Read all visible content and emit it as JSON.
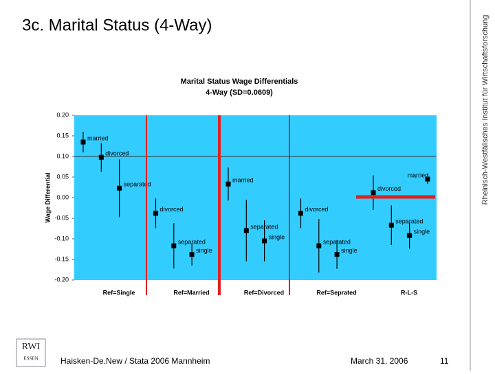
{
  "slide": {
    "title": "3c. Marital Status (4-Way)",
    "side_text": "Rheinisch-Westfälisches Institut für Wirtschaftsforschung",
    "logo": {
      "name": "RWI",
      "city": "ESSEN"
    },
    "footer": {
      "author": "Haisken-De.New / Stata 2006 Mannheim",
      "date": "March 31, 2006",
      "page": "11"
    }
  },
  "chart_data": {
    "type": "errorbar",
    "title": "Marital Status Wage Differentials",
    "subtitle": "4-Way (SD=0.0609)",
    "ylabel": "Wage Differential",
    "ylim": [
      -0.2,
      0.2
    ],
    "yticks": [
      {
        "value": 0.2,
        "label": "0.20"
      },
      {
        "value": 0.15,
        "label": "0.15"
      },
      {
        "value": 0.1,
        "label": "0.10"
      },
      {
        "value": 0.05,
        "label": "0.05"
      },
      {
        "value": 0,
        "label": "0.00"
      },
      {
        "value": -0.05,
        "label": "-0.05"
      },
      {
        "value": -0.1,
        "label": "-0.10"
      },
      {
        "value": -0.15,
        "label": "-0.15"
      },
      {
        "value": -0.2,
        "label": "-0.20"
      }
    ],
    "groups": [
      {
        "name": "Ref=Single",
        "points": [
          {
            "label": "married",
            "value": 0.135,
            "error": 0.025
          },
          {
            "label": "divorced",
            "value": 0.098,
            "error": 0.035
          },
          {
            "label": "separated",
            "value": 0.023,
            "error": 0.07
          }
        ]
      },
      {
        "name": "Ref=Married",
        "points": [
          {
            "label": "divorced",
            "value": -0.038,
            "error": 0.036
          },
          {
            "label": "separated",
            "value": -0.117,
            "error": 0.055
          },
          {
            "label": "single",
            "value": -0.138,
            "error": 0.027
          }
        ]
      },
      {
        "name": "Ref=Divorced",
        "points": [
          {
            "label": "married",
            "value": 0.033,
            "error": 0.04
          },
          {
            "label": "separated",
            "value": -0.08,
            "error": 0.075
          },
          {
            "label": "single",
            "value": -0.105,
            "error": 0.05
          }
        ]
      },
      {
        "name": "Ref=Seprated",
        "points": [
          {
            "label": "divorced",
            "value": -0.038,
            "error": 0.036
          },
          {
            "label": "separated",
            "value": -0.117,
            "error": 0.065
          },
          {
            "label": "single",
            "value": -0.138,
            "error": 0.035
          }
        ]
      },
      {
        "name": "R-L-S",
        "points": [
          {
            "label": "divorced",
            "value": 0.012,
            "error": 0.042
          },
          {
            "label": "separated",
            "value": -0.067,
            "error": 0.048
          },
          {
            "label": "single",
            "value": -0.092,
            "error": 0.032
          },
          {
            "label": "married",
            "value": 0.045,
            "error": 0.012
          }
        ]
      }
    ],
    "plot_color": "#33ccff",
    "marker_color": "#000000"
  }
}
